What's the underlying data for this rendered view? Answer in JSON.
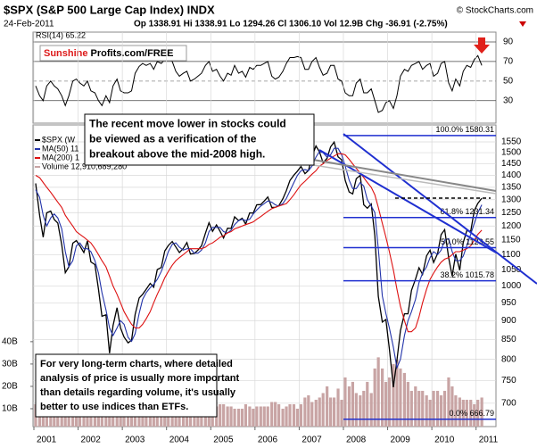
{
  "chart_data": [
    {
      "type": "line",
      "label": "RSI(14) 65.22",
      "logo": [
        "Sunshine",
        "Profits.com/FREE"
      ],
      "x": [
        2001.04,
        2001.13,
        2001.21,
        2001.29,
        2001.38,
        2001.46,
        2001.54,
        2001.63,
        2001.71,
        2001.79,
        2001.88,
        2001.96,
        2002.04,
        2002.13,
        2002.21,
        2002.29,
        2002.38,
        2002.46,
        2002.54,
        2002.63,
        2002.71,
        2002.79,
        2002.88,
        2002.96,
        2003.04,
        2003.13,
        2003.21,
        2003.29,
        2003.38,
        2003.46,
        2003.54,
        2003.63,
        2003.71,
        2003.79,
        2003.88,
        2003.96,
        2004.04,
        2004.13,
        2004.21,
        2004.29,
        2004.38,
        2004.46,
        2004.54,
        2004.63,
        2004.71,
        2004.79,
        2004.88,
        2004.96,
        2005.04,
        2005.13,
        2005.21,
        2005.29,
        2005.38,
        2005.46,
        2005.54,
        2005.63,
        2005.71,
        2005.79,
        2005.88,
        2005.96,
        2006.04,
        2006.13,
        2006.21,
        2006.29,
        2006.38,
        2006.46,
        2006.54,
        2006.63,
        2006.71,
        2006.79,
        2006.88,
        2006.96,
        2007.04,
        2007.13,
        2007.21,
        2007.29,
        2007.38,
        2007.46,
        2007.54,
        2007.63,
        2007.71,
        2007.79,
        2007.88,
        2007.96,
        2008.04,
        2008.13,
        2008.21,
        2008.29,
        2008.38,
        2008.46,
        2008.54,
        2008.63,
        2008.71,
        2008.79,
        2008.88,
        2008.96,
        2009.04,
        2009.13,
        2009.21,
        2009.29,
        2009.38,
        2009.46,
        2009.54,
        2009.63,
        2009.71,
        2009.79,
        2009.88,
        2009.96,
        2010.04,
        2010.13,
        2010.21,
        2010.29,
        2010.38,
        2010.46,
        2010.54,
        2010.63,
        2010.71,
        2010.79,
        2010.88,
        2010.96,
        2011.04,
        2011.13
      ],
      "series": [
        {
          "color": "#000000",
          "values": [
            45,
            35,
            30,
            45,
            50,
            45,
            42,
            35,
            25,
            35,
            50,
            52,
            48,
            45,
            50,
            40,
            38,
            30,
            25,
            35,
            28,
            45,
            52,
            40,
            38,
            38,
            40,
            58,
            65,
            68,
            66,
            68,
            62,
            70,
            68,
            72,
            72,
            70,
            60,
            55,
            58,
            60,
            50,
            52,
            55,
            58,
            66,
            70,
            60,
            62,
            55,
            50,
            58,
            56,
            66,
            58,
            60,
            54,
            64,
            62,
            66,
            66,
            68,
            70,
            55,
            52,
            54,
            60,
            68,
            74,
            74,
            75,
            74,
            62,
            62,
            70,
            74,
            64,
            56,
            58,
            66,
            66,
            52,
            50,
            38,
            35,
            35,
            48,
            52,
            38,
            38,
            42,
            30,
            18,
            20,
            28,
            30,
            22,
            35,
            55,
            62,
            60,
            66,
            68,
            70,
            62,
            66,
            68,
            55,
            58,
            68,
            70,
            48,
            40,
            52,
            45,
            60,
            66,
            64,
            72,
            76,
            66
          ]
        }
      ],
      "xlim": [
        2000.98,
        2011.45
      ],
      "ylim": [
        7,
        100
      ],
      "yticks": [
        30,
        50,
        70,
        90
      ]
    },
    {
      "type": "line",
      "title": "$SPX (S&P 500 Large Cap Index) INDX",
      "credit": "© StockCharts.com",
      "date": "24-Feb-2011",
      "quote": "Op 1338.91  Hi 1338.91  Lo 1294.26  Cl 1306.10  Vol 12.9B  Chg -36.91 (-2.75%)",
      "log_scale": true,
      "grid": true,
      "x": [
        2001.04,
        2001.13,
        2001.21,
        2001.29,
        2001.38,
        2001.46,
        2001.54,
        2001.63,
        2001.71,
        2001.79,
        2001.88,
        2001.96,
        2002.04,
        2002.13,
        2002.21,
        2002.29,
        2002.38,
        2002.46,
        2002.54,
        2002.63,
        2002.71,
        2002.79,
        2002.88,
        2002.96,
        2003.04,
        2003.13,
        2003.21,
        2003.29,
        2003.38,
        2003.46,
        2003.54,
        2003.63,
        2003.71,
        2003.79,
        2003.88,
        2003.96,
        2004.04,
        2004.13,
        2004.21,
        2004.29,
        2004.38,
        2004.46,
        2004.54,
        2004.63,
        2004.71,
        2004.79,
        2004.88,
        2004.96,
        2005.04,
        2005.13,
        2005.21,
        2005.29,
        2005.38,
        2005.46,
        2005.54,
        2005.63,
        2005.71,
        2005.79,
        2005.88,
        2005.96,
        2006.04,
        2006.13,
        2006.21,
        2006.29,
        2006.38,
        2006.46,
        2006.54,
        2006.63,
        2006.71,
        2006.79,
        2006.88,
        2006.96,
        2007.04,
        2007.13,
        2007.21,
        2007.29,
        2007.38,
        2007.46,
        2007.54,
        2007.63,
        2007.71,
        2007.79,
        2007.88,
        2007.96,
        2008.04,
        2008.13,
        2008.21,
        2008.29,
        2008.38,
        2008.46,
        2008.54,
        2008.63,
        2008.71,
        2008.79,
        2008.88,
        2008.96,
        2009.04,
        2009.13,
        2009.21,
        2009.29,
        2009.38,
        2009.46,
        2009.54,
        2009.63,
        2009.71,
        2009.79,
        2009.88,
        2009.96,
        2010.04,
        2010.13,
        2010.21,
        2010.29,
        2010.38,
        2010.46,
        2010.54,
        2010.63,
        2010.71,
        2010.79,
        2010.88,
        2010.96,
        2011.04,
        2011.13
      ],
      "series": [
        {
          "name": "$SPX (W",
          "color": "#000000",
          "values": [
            1366,
            1240,
            1160,
            1249,
            1256,
            1224,
            1211,
            1134,
            1041,
            1060,
            1139,
            1148,
            1130,
            1107,
            1147,
            1076,
            1067,
            990,
            912,
            916,
            815,
            886,
            936,
            880,
            856,
            841,
            848,
            917,
            964,
            975,
            990,
            1008,
            996,
            1051,
            1058,
            1112,
            1131,
            1145,
            1126,
            1107,
            1121,
            1141,
            1102,
            1104,
            1115,
            1130,
            1174,
            1212,
            1181,
            1204,
            1181,
            1157,
            1192,
            1191,
            1234,
            1220,
            1229,
            1207,
            1249,
            1248,
            1280,
            1281,
            1295,
            1311,
            1270,
            1270,
            1277,
            1304,
            1336,
            1378,
            1401,
            1418,
            1438,
            1407,
            1421,
            1482,
            1531,
            1503,
            1455,
            1474,
            1527,
            1549,
            1481,
            1468,
            1379,
            1331,
            1323,
            1386,
            1400,
            1280,
            1267,
            1283,
            1166,
            969,
            896,
            903,
            826,
            735,
            798,
            873,
            919,
            919,
            987,
            1021,
            1057,
            1036,
            1096,
            1115,
            1074,
            1104,
            1169,
            1187,
            1089,
            1031,
            1102,
            1049,
            1141,
            1183,
            1181,
            1258,
            1286,
            1306
          ]
        },
        {
          "name": "MA(50) 11",
          "color": "#2233aa",
          "values": [
            1340,
            1310,
            1240,
            1200,
            1230,
            1245,
            1230,
            1190,
            1110,
            1060,
            1080,
            1130,
            1140,
            1120,
            1120,
            1110,
            1080,
            1040,
            980,
            930,
            880,
            860,
            880,
            900,
            890,
            855,
            845,
            865,
            920,
            960,
            980,
            995,
            1005,
            1020,
            1045,
            1075,
            1110,
            1135,
            1140,
            1125,
            1115,
            1120,
            1120,
            1105,
            1105,
            1115,
            1140,
            1180,
            1195,
            1195,
            1195,
            1180,
            1175,
            1185,
            1205,
            1220,
            1225,
            1220,
            1225,
            1245,
            1260,
            1275,
            1285,
            1295,
            1290,
            1280,
            1275,
            1285,
            1305,
            1335,
            1370,
            1400,
            1420,
            1425,
            1420,
            1440,
            1480,
            1505,
            1500,
            1480,
            1490,
            1520,
            1520,
            1490,
            1440,
            1380,
            1345,
            1345,
            1370,
            1355,
            1300,
            1275,
            1250,
            1120,
            970,
            920,
            880,
            830,
            780,
            800,
            860,
            900,
            925,
            960,
            1010,
            1040,
            1060,
            1090,
            1110,
            1100,
            1115,
            1150,
            1155,
            1110,
            1080,
            1080,
            1095,
            1130,
            1170,
            1210,
            1250,
            1280
          ]
        },
        {
          "name": "MA(200) 1",
          "color": "#dd1111",
          "values": [
            1400,
            1390,
            1370,
            1350,
            1330,
            1310,
            1290,
            1270,
            1240,
            1220,
            1200,
            1180,
            1170,
            1160,
            1150,
            1140,
            1120,
            1100,
            1080,
            1060,
            1030,
            1000,
            975,
            950,
            925,
            905,
            890,
            880,
            880,
            890,
            905,
            925,
            950,
            975,
            1000,
            1025,
            1045,
            1065,
            1080,
            1090,
            1100,
            1110,
            1120,
            1120,
            1120,
            1120,
            1125,
            1135,
            1140,
            1150,
            1160,
            1165,
            1175,
            1180,
            1190,
            1195,
            1200,
            1205,
            1210,
            1215,
            1225,
            1235,
            1245,
            1255,
            1265,
            1270,
            1275,
            1280,
            1285,
            1300,
            1320,
            1340,
            1360,
            1375,
            1390,
            1405,
            1420,
            1440,
            1450,
            1465,
            1475,
            1485,
            1495,
            1495,
            1490,
            1470,
            1450,
            1430,
            1410,
            1390,
            1370,
            1350,
            1320,
            1270,
            1210,
            1160,
            1110,
            1050,
            990,
            940,
            900,
            870,
            870,
            880,
            910,
            950,
            990,
            1020,
            1040,
            1060,
            1075,
            1085,
            1090,
            1100,
            1110,
            1110,
            1115,
            1120,
            1130,
            1150,
            1170,
            1185
          ]
        },
        {
          "name": "Volume 12,910,689,280",
          "color": "#c8a4a4",
          "axis": "y2",
          "values": [
            12,
            13,
            16,
            15,
            13,
            12,
            11,
            11,
            16,
            14,
            13,
            12,
            13,
            13,
            12,
            13,
            13,
            15,
            19,
            14,
            15,
            16,
            13,
            12,
            12,
            12,
            13,
            11,
            12,
            13,
            11,
            10,
            12,
            11,
            11,
            10,
            11,
            11,
            12,
            11,
            11,
            11,
            10,
            9,
            10,
            11,
            11,
            11,
            11,
            11,
            12,
            12,
            11,
            11,
            10,
            10,
            10,
            12,
            11,
            10,
            11,
            11,
            11,
            11,
            13,
            13,
            12,
            10,
            11,
            12,
            12,
            10,
            12,
            15,
            16,
            13,
            14,
            15,
            17,
            20,
            15,
            15,
            19,
            14,
            24,
            20,
            22,
            17,
            16,
            18,
            22,
            17,
            28,
            33,
            28,
            22,
            24,
            30,
            32,
            28,
            26,
            22,
            18,
            20,
            18,
            18,
            16,
            14,
            18,
            18,
            16,
            18,
            24,
            20,
            16,
            15,
            14,
            14,
            14,
            12,
            14,
            15
          ]
        }
      ],
      "xlim": [
        2000.98,
        2011.45
      ],
      "xticks": [
        2001,
        2002,
        2003,
        2004,
        2005,
        2006,
        2007,
        2008,
        2009,
        2010,
        2011
      ],
      "ylim": [
        652,
        1632
      ],
      "yticks": [
        700,
        750,
        800,
        850,
        900,
        950,
        1000,
        1050,
        1100,
        1150,
        1200,
        1250,
        1300,
        1350,
        1400,
        1450,
        1500,
        1550
      ],
      "y2lim": [
        2,
        137
      ],
      "y2ticks": [
        {
          "value": 10,
          "label": "10B"
        },
        {
          "value": 20,
          "label": "20B"
        },
        {
          "value": 30,
          "label": "30B"
        },
        {
          "value": 40,
          "label": "40B"
        }
      ],
      "levels": [
        {
          "value": 1580.31,
          "label": "100.0% 1580.31"
        },
        {
          "value": 1231.34,
          "label": "61.8% 1231.34"
        },
        {
          "value": 1123.55,
          "label": "50.0% 1123.55"
        },
        {
          "value": 1015.78,
          "label": "38.2% 1015.78"
        },
        {
          "value": 666.79,
          "label": "0.0% 666.79"
        }
      ],
      "annotations": [
        {
          "lines": [
            "The recent move lower in stocks could",
            "be viewed as a verification of the",
            "breakout above the mid-2008 high."
          ]
        },
        {
          "lines": [
            "For very long-term charts, where detailed",
            "analysis of price is usually more important",
            "than details regarding volume, it's usually",
            "better to use indices than ETFs."
          ]
        }
      ]
    }
  ]
}
